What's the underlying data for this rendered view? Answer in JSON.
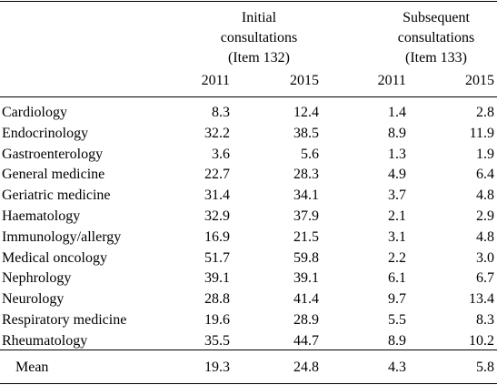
{
  "header": {
    "initial": [
      "Initial",
      "consultations",
      "(Item 132)"
    ],
    "subsequent": [
      "Subsequent",
      "consultations",
      "(Item 133)"
    ],
    "years": [
      "2011",
      "2015",
      "2011",
      "2015"
    ]
  },
  "rows": [
    {
      "label": "Cardiology",
      "values": [
        "8.3",
        "12.4",
        "1.4",
        "2.8"
      ]
    },
    {
      "label": "Endocrinology",
      "values": [
        "32.2",
        "38.5",
        "8.9",
        "11.9"
      ]
    },
    {
      "label": "Gastroenterology",
      "values": [
        "3.6",
        "5.6",
        "1.3",
        "1.9"
      ]
    },
    {
      "label": "General medicine",
      "values": [
        "22.7",
        "28.3",
        "4.9",
        "6.4"
      ]
    },
    {
      "label": "Geriatric medicine",
      "values": [
        "31.4",
        "34.1",
        "3.7",
        "4.8"
      ]
    },
    {
      "label": "Haematology",
      "values": [
        "32.9",
        "37.9",
        "2.1",
        "2.9"
      ]
    },
    {
      "label": "Immunology/allergy",
      "values": [
        "16.9",
        "21.5",
        "3.1",
        "4.8"
      ]
    },
    {
      "label": "Medical oncology",
      "values": [
        "51.7",
        "59.8",
        "2.2",
        "3.0"
      ]
    },
    {
      "label": "Nephrology",
      "values": [
        "39.1",
        "39.1",
        "6.1",
        "6.7"
      ]
    },
    {
      "label": "Neurology",
      "values": [
        "28.8",
        "41.4",
        "9.7",
        "13.4"
      ]
    },
    {
      "label": "Respiratory medicine",
      "values": [
        "19.6",
        "28.9",
        "5.5",
        "8.3"
      ]
    },
    {
      "label": "Rheumatology",
      "values": [
        "35.5",
        "44.7",
        "8.9",
        "10.2"
      ]
    }
  ],
  "mean": {
    "label": "Mean",
    "values": [
      "19.3",
      "24.8",
      "4.3",
      "5.8"
    ]
  }
}
